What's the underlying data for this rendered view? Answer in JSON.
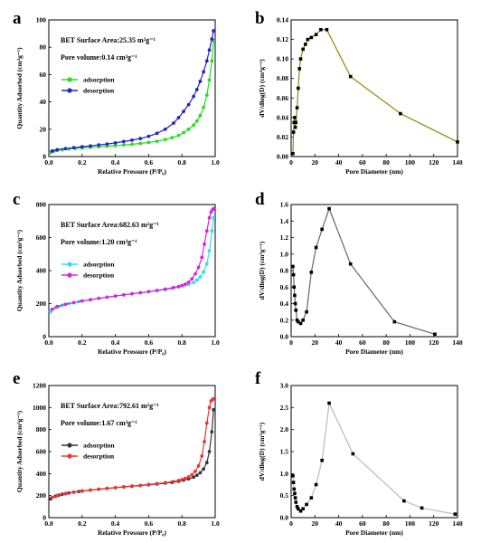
{
  "chart_data": [
    {
      "panel": "a",
      "type": "line",
      "xlabel": "Relative Pressure (P/P₀)",
      "ylabel": "Quantity Adsorbed (cm³g⁻¹)",
      "xlim": [
        0.0,
        1.0
      ],
      "ylim": [
        0,
        100
      ],
      "xticks": [
        "0.0",
        "0.2",
        "0.4",
        "0.6",
        "0.8",
        "1.0"
      ],
      "yticks": [
        "0",
        "20",
        "40",
        "60",
        "80",
        "100"
      ],
      "annotations": [
        "BET Surface Area:25.35 m²g⁻¹",
        "Pore volume:0.14 cm³g⁻¹"
      ],
      "legend_position": "upper-left",
      "series": [
        {
          "name": "adsorption",
          "color": "#22dd22",
          "marker": "circle",
          "x": [
            0.01,
            0.03,
            0.05,
            0.08,
            0.12,
            0.16,
            0.2,
            0.25,
            0.3,
            0.35,
            0.4,
            0.45,
            0.5,
            0.55,
            0.6,
            0.65,
            0.7,
            0.74,
            0.78,
            0.81,
            0.84,
            0.87,
            0.89,
            0.91,
            0.93,
            0.95,
            0.965,
            0.98,
            0.99
          ],
          "y": [
            3,
            4,
            4.5,
            5,
            5.5,
            6,
            6.3,
            6.8,
            7.2,
            7.6,
            8,
            8.5,
            9,
            9.6,
            10.3,
            11.2,
            12.5,
            13.8,
            15.5,
            17.5,
            20,
            23,
            26,
            30,
            36,
            45,
            56,
            70,
            85
          ]
        },
        {
          "name": "desorption",
          "color": "#2222cc",
          "marker": "circle",
          "x": [
            0.99,
            0.98,
            0.965,
            0.95,
            0.93,
            0.91,
            0.89,
            0.87,
            0.84,
            0.81,
            0.78,
            0.75,
            0.7,
            0.65,
            0.6,
            0.55,
            0.5,
            0.45,
            0.4,
            0.35,
            0.3,
            0.25,
            0.2,
            0.15,
            0.1,
            0.05,
            0.02
          ],
          "y": [
            92,
            86,
            78,
            70,
            62,
            55,
            49,
            44,
            38,
            33,
            28.5,
            24.5,
            20,
            17,
            14.8,
            13.2,
            12,
            11,
            10,
            9.2,
            8.5,
            7.8,
            7.2,
            6.5,
            5.8,
            5,
            4
          ]
        }
      ]
    },
    {
      "panel": "b",
      "type": "line",
      "xlabel": "Pore Diameter (nm)",
      "ylabel": "dV/dlog(D) (cm³g⁻¹)",
      "xlim": [
        0,
        140
      ],
      "ylim": [
        0,
        0.14
      ],
      "xticks": [
        "0",
        "20",
        "40",
        "60",
        "80",
        "100",
        "120",
        "140"
      ],
      "yticks": [
        "0.00",
        "0.02",
        "0.04",
        "0.06",
        "0.08",
        "0.10",
        "0.12",
        "0.14"
      ],
      "line_color": "#8b8b00",
      "series": [
        {
          "name": "",
          "color": "#8b8b00",
          "marker": "square",
          "x": [
            1.5,
            2,
            2.5,
            3,
            3.5,
            4,
            5,
            6,
            7,
            8,
            10,
            12,
            14,
            17,
            21,
            25,
            30,
            50,
            92,
            140
          ],
          "y": [
            0.003,
            0.025,
            0.035,
            0.04,
            0.03,
            0.035,
            0.05,
            0.07,
            0.09,
            0.1,
            0.11,
            0.115,
            0.12,
            0.122,
            0.125,
            0.13,
            0.13,
            0.082,
            0.044,
            0.015
          ]
        }
      ]
    },
    {
      "panel": "c",
      "type": "line",
      "xlabel": "Relative Pressure (P/P₀)",
      "ylabel": "Quantity Adsorbed (cm³g⁻¹)",
      "xlim": [
        0.0,
        1.0
      ],
      "ylim": [
        0,
        800
      ],
      "xticks": [
        "0.0",
        "0.2",
        "0.4",
        "0.6",
        "0.8",
        "1.0"
      ],
      "yticks": [
        "0",
        "200",
        "400",
        "600",
        "800"
      ],
      "annotations": [
        "BET Surface Area:682.63 m²g⁻¹",
        "Pore volume:1.20 cm³g⁻¹"
      ],
      "legend_position": "upper-left",
      "series": [
        {
          "name": "adsorption",
          "color": "#33ddee",
          "marker": "circle",
          "x": [
            0.01,
            0.02,
            0.04,
            0.06,
            0.08,
            0.1,
            0.12,
            0.15,
            0.18,
            0.2,
            0.25,
            0.3,
            0.35,
            0.4,
            0.45,
            0.5,
            0.55,
            0.6,
            0.65,
            0.7,
            0.74,
            0.78,
            0.81,
            0.84,
            0.87,
            0.89,
            0.91,
            0.93,
            0.95,
            0.965,
            0.98,
            0.99
          ],
          "y": [
            150,
            165,
            175,
            183,
            190,
            196,
            200,
            206,
            212,
            216,
            224,
            232,
            239,
            246,
            253,
            260,
            266,
            272,
            278,
            285,
            292,
            300,
            308,
            316,
            328,
            342,
            362,
            392,
            440,
            520,
            640,
            720
          ]
        },
        {
          "name": "desorption",
          "color": "#dd22dd",
          "marker": "circle",
          "x": [
            0.99,
            0.985,
            0.975,
            0.965,
            0.95,
            0.935,
            0.92,
            0.9,
            0.88,
            0.86,
            0.84,
            0.82,
            0.8,
            0.78,
            0.75,
            0.7,
            0.65,
            0.6,
            0.55,
            0.5,
            0.45,
            0.4,
            0.35,
            0.3,
            0.25,
            0.2,
            0.15,
            0.1,
            0.05,
            0.02
          ],
          "y": [
            775,
            770,
            755,
            720,
            640,
            560,
            480,
            420,
            380,
            350,
            330,
            318,
            310,
            304,
            297,
            288,
            280,
            273,
            266,
            260,
            253,
            246,
            239,
            232,
            224,
            216,
            206,
            196,
            182,
            165
          ]
        }
      ]
    },
    {
      "panel": "d",
      "type": "line",
      "xlabel": "Pore Diameter (nm)",
      "ylabel": "dV/dlog(D) (cm³g⁻¹)",
      "xlim": [
        0,
        140
      ],
      "ylim": [
        0,
        1.6
      ],
      "xticks": [
        "0",
        "20",
        "40",
        "60",
        "80",
        "100",
        "120",
        "140"
      ],
      "yticks": [
        "0.0",
        "0.2",
        "0.4",
        "0.6",
        "0.8",
        "1.0",
        "1.2",
        "1.4",
        "1.6"
      ],
      "line_color": "#666666",
      "series": [
        {
          "name": "",
          "color": "#666666",
          "marker": "square",
          "x": [
            1.5,
            2,
            2.5,
            3,
            3.5,
            4,
            5,
            6,
            8,
            10,
            13,
            17,
            21,
            26,
            32,
            50,
            87,
            121
          ],
          "y": [
            0.85,
            0.75,
            0.6,
            0.5,
            0.4,
            0.32,
            0.2,
            0.18,
            0.16,
            0.2,
            0.3,
            0.78,
            1.08,
            1.3,
            1.55,
            0.88,
            0.18,
            0.03
          ]
        }
      ]
    },
    {
      "panel": "e",
      "type": "line",
      "xlabel": "Relative Pressure (P/P₀)",
      "ylabel": "Quantity Adsorbed (cm³g⁻¹)",
      "xlim": [
        0.0,
        1.0
      ],
      "ylim": [
        0,
        1200
      ],
      "xticks": [
        "0.0",
        "0.2",
        "0.4",
        "0.6",
        "0.8",
        "1.0"
      ],
      "yticks": [
        "0",
        "200",
        "400",
        "600",
        "800",
        "1000",
        "1200"
      ],
      "annotations": [
        "BET Surface Area:792.61 m²g⁻¹",
        "Pore volume:1.67 cm³g⁻¹"
      ],
      "legend_position": "upper-left",
      "series": [
        {
          "name": "adsorption",
          "color": "#333344",
          "marker": "circle",
          "x": [
            0.01,
            0.02,
            0.04,
            0.06,
            0.08,
            0.1,
            0.12,
            0.15,
            0.18,
            0.2,
            0.25,
            0.3,
            0.35,
            0.4,
            0.45,
            0.5,
            0.55,
            0.6,
            0.65,
            0.7,
            0.74,
            0.78,
            0.81,
            0.84,
            0.87,
            0.89,
            0.91,
            0.93,
            0.95,
            0.965,
            0.98,
            0.99
          ],
          "y": [
            170,
            183,
            195,
            204,
            212,
            218,
            224,
            231,
            237,
            241,
            250,
            258,
            265,
            272,
            279,
            285,
            292,
            298,
            305,
            313,
            321,
            330,
            340,
            352,
            368,
            385,
            408,
            442,
            500,
            600,
            780,
            980
          ]
        },
        {
          "name": "desorption",
          "color": "#ee3333",
          "marker": "circle",
          "x": [
            0.99,
            0.985,
            0.975,
            0.965,
            0.95,
            0.935,
            0.92,
            0.9,
            0.88,
            0.86,
            0.84,
            0.82,
            0.8,
            0.78,
            0.75,
            0.7,
            0.65,
            0.6,
            0.55,
            0.5,
            0.45,
            0.4,
            0.35,
            0.3,
            0.25,
            0.2,
            0.15,
            0.1,
            0.05,
            0.02
          ],
          "y": [
            1080,
            1075,
            1060,
            1000,
            860,
            690,
            560,
            470,
            420,
            390,
            370,
            356,
            346,
            338,
            328,
            318,
            310,
            302,
            294,
            287,
            280,
            273,
            266,
            259,
            251,
            243,
            232,
            220,
            200,
            183
          ]
        }
      ]
    },
    {
      "panel": "f",
      "type": "line",
      "xlabel": "Pore Diameter (nm)",
      "ylabel": "dV/dlog(D) (cm³g⁻¹)",
      "xlim": [
        0,
        140
      ],
      "ylim": [
        0,
        3.0
      ],
      "xticks": [
        "0",
        "20",
        "40",
        "60",
        "80",
        "100",
        "120",
        "140"
      ],
      "yticks": [
        "0.0",
        "0.5",
        "1.0",
        "1.5",
        "2.0",
        "2.5",
        "3.0"
      ],
      "line_color": "#bbbbbb",
      "series": [
        {
          "name": "",
          "color": "#bbbbbb",
          "marker": "square",
          "x": [
            1.5,
            2,
            2.5,
            3,
            3.5,
            4,
            5,
            6,
            8,
            10,
            13,
            17,
            21,
            26,
            32,
            52,
            95,
            110,
            138
          ],
          "y": [
            0.95,
            0.8,
            0.65,
            0.55,
            0.45,
            0.35,
            0.25,
            0.2,
            0.15,
            0.2,
            0.3,
            0.45,
            0.75,
            1.3,
            2.6,
            1.45,
            0.38,
            0.22,
            0.08
          ]
        }
      ]
    }
  ]
}
